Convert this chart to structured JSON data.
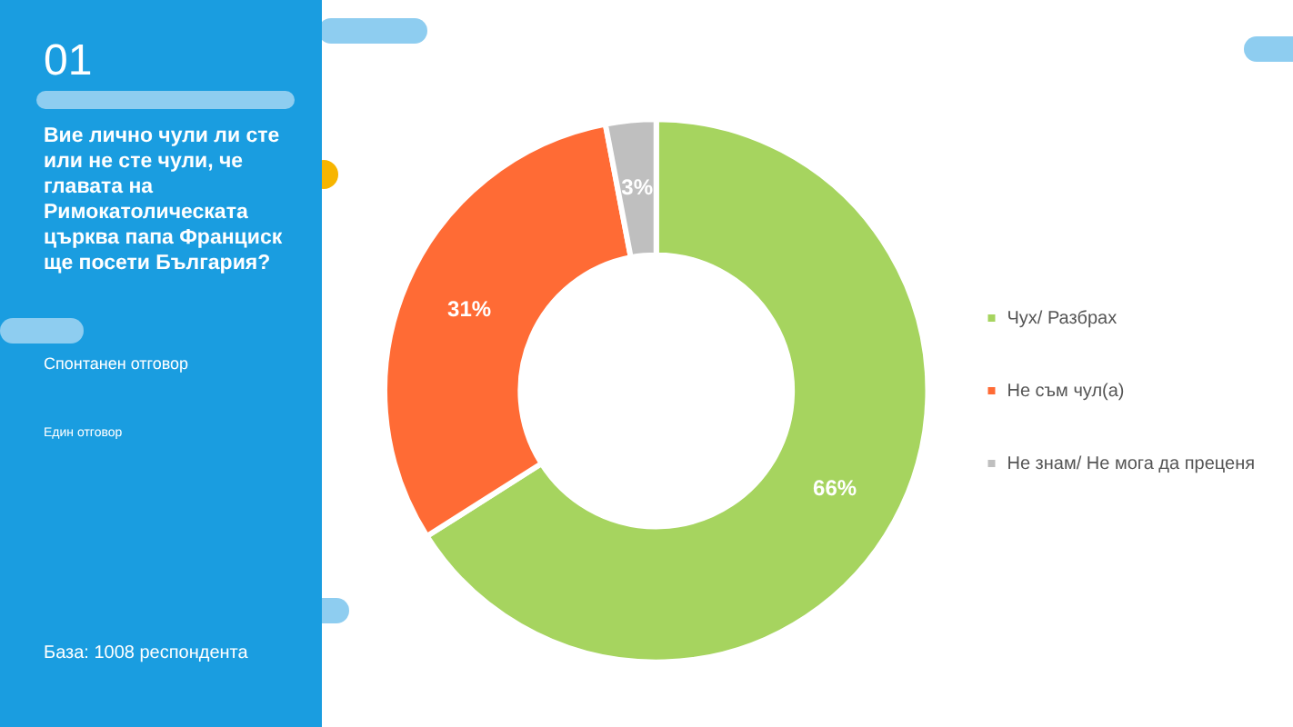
{
  "chart_data": {
    "type": "donut",
    "title": "Вие лично чули ли сте или не сте чули, че главата на Римокатолическата църква папа Франциск ще посети България?",
    "categories": [
      "Чух/ Разбрах",
      "Не съм чул(а)",
      "Не знам/ Не мога да преценя"
    ],
    "values": [
      66,
      31,
      3
    ],
    "value_labels": [
      "66%",
      "31%",
      "3%"
    ],
    "colors": [
      "#a6d45f",
      "#ff6b35",
      "#bfbfbf"
    ],
    "legend": "right",
    "annotations": [
      "01",
      "Спонтанен отговор",
      "Един отговор",
      "База: 1008 респондента"
    ]
  }
}
